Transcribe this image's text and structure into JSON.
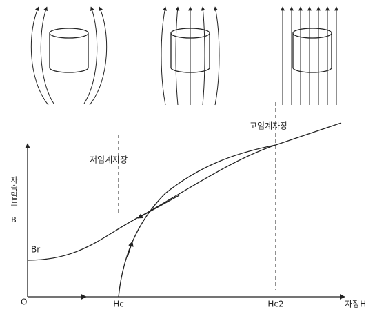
{
  "labels": {
    "lower_critical_field": "저임계자장",
    "upper_critical_field": "고임계자장",
    "y_axis": "자속밀도 B",
    "x_axis": "자장H",
    "origin": "O",
    "remanence": "Br",
    "hc1": "Hc",
    "hc2": "Hc2"
  }
}
